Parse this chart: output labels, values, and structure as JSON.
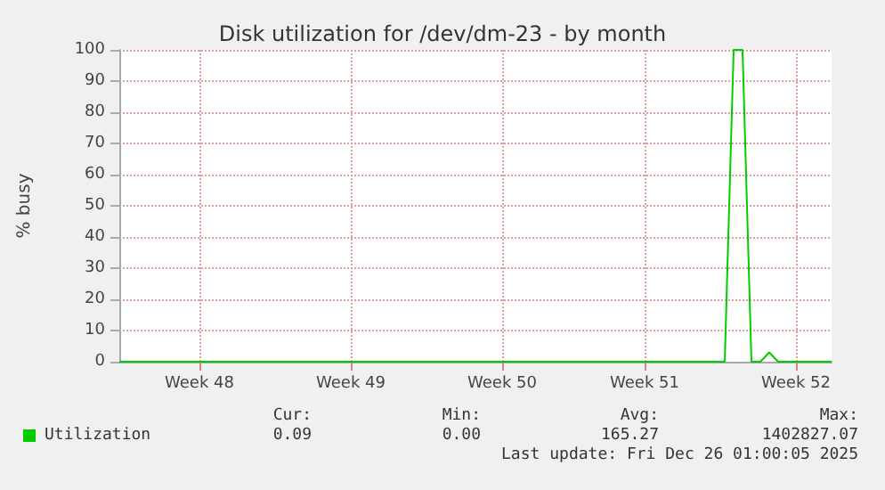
{
  "chart_data": {
    "type": "line",
    "title": "Disk utilization for /dev/dm-23 - by month",
    "ylabel": "% busy",
    "categories": [
      null,
      null,
      null,
      null,
      null,
      null,
      null,
      null,
      null,
      "Week 48",
      null,
      null,
      null,
      null,
      null,
      null,
      null,
      null,
      null,
      null,
      null,
      null,
      null,
      null,
      null,
      null,
      "Week 49",
      null,
      null,
      null,
      null,
      null,
      null,
      null,
      null,
      null,
      null,
      null,
      null,
      null,
      null,
      null,
      null,
      "Week 50",
      null,
      null,
      null,
      null,
      null,
      null,
      null,
      null,
      null,
      null,
      null,
      null,
      null,
      null,
      null,
      "Week 51",
      null,
      null,
      null,
      null,
      null,
      null,
      null,
      null,
      null,
      null,
      null,
      null,
      null,
      null,
      null,
      null,
      "Week 52",
      null,
      null,
      null,
      null
    ],
    "series": [
      {
        "name": "Utilization",
        "color": "#00cc00",
        "values": [
          0,
          0,
          0,
          0,
          0,
          0,
          0,
          0,
          0,
          0,
          0,
          0,
          0,
          0,
          0,
          0,
          0,
          0,
          0,
          0,
          0,
          0,
          0,
          0,
          0,
          0,
          0,
          0,
          0,
          0,
          0,
          0,
          0,
          0,
          0,
          0,
          0,
          0,
          0,
          0,
          0,
          0,
          0,
          0,
          0,
          0,
          0,
          0,
          0,
          0,
          0,
          0,
          0,
          0,
          0,
          0,
          0,
          0,
          0,
          0,
          0,
          0,
          0,
          0,
          0,
          0,
          0,
          0,
          0,
          100,
          100,
          0,
          0,
          3,
          0,
          0,
          0,
          0,
          0,
          0,
          0
        ]
      }
    ],
    "ylim": [
      0,
      100
    ],
    "yticks": [
      0,
      10,
      20,
      30,
      40,
      50,
      60,
      70,
      80,
      90,
      100
    ],
    "grid": true,
    "legend": "bottom left",
    "marker": "none",
    "line_style": "solid",
    "annotations": [
      "Cur:",
      "Min:",
      "Avg:",
      "Max:",
      "0.09",
      "0.00",
      "165.27",
      "1402827.07",
      "Last update: Fri Dec 26 01:00:05 2025"
    ]
  }
}
